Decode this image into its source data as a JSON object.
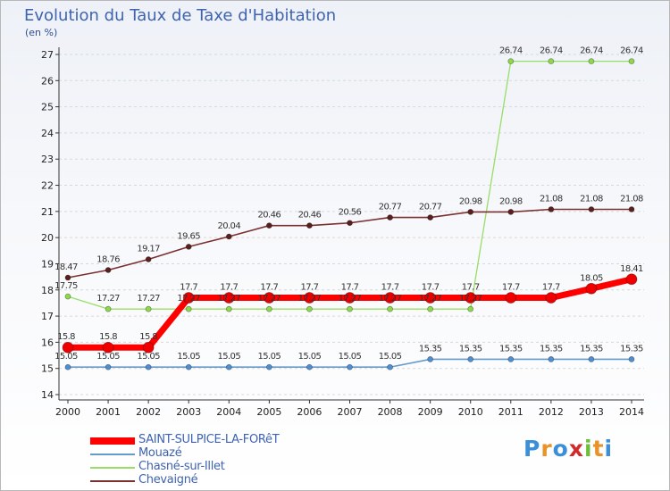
{
  "page": {
    "title": "Evolution du Taux de Taxe d'Habitation",
    "unit": "(en %)"
  },
  "chart_data": {
    "type": "line",
    "title": "Evolution du Taux de Taxe d'Habitation",
    "ylabel": "(en %)",
    "xlabel": "",
    "x": [
      2000,
      2001,
      2002,
      2003,
      2004,
      2005,
      2006,
      2007,
      2008,
      2009,
      2010,
      2011,
      2012,
      2013,
      2014
    ],
    "ylim": [
      14,
      27
    ],
    "yticks": [
      14,
      15,
      16,
      17,
      18,
      19,
      20,
      21,
      22,
      23,
      24,
      25,
      26,
      27
    ],
    "grid": "horizontal",
    "legend_position": "bottom-left",
    "series": [
      {
        "name": "SAINT-SULPICE-LA-FORêT",
        "color": "#ff0000",
        "values": [
          15.8,
          15.8,
          15.8,
          17.7,
          17.7,
          17.7,
          17.7,
          17.7,
          17.7,
          17.7,
          17.7,
          17.7,
          17.7,
          18.05,
          18.41
        ],
        "labels": [
          "15.8",
          "15.8",
          "15.8",
          "17.7",
          "17.7",
          "17.7",
          "17.7",
          "17.7",
          "17.7",
          "17.7",
          "17.7",
          "17.7",
          "17.7",
          "18.05",
          "18.41"
        ]
      },
      {
        "name": "Mouazé",
        "color": "#6699cc",
        "values": [
          15.05,
          15.05,
          15.05,
          15.05,
          15.05,
          15.05,
          15.05,
          15.05,
          15.05,
          15.35,
          15.35,
          15.35,
          15.35,
          15.35,
          15.35
        ],
        "labels": [
          "15.05",
          "15.05",
          "15.05",
          "15.05",
          "15.05",
          "15.05",
          "15.05",
          "15.05",
          "15.05",
          "15.35",
          "15.35",
          "15.35",
          "15.35",
          "15.35",
          "15.35"
        ]
      },
      {
        "name": "Chasné-sur-Illet",
        "color": "#99dd66",
        "values": [
          17.75,
          17.27,
          17.27,
          17.27,
          17.27,
          17.27,
          17.27,
          17.27,
          17.27,
          17.27,
          17.27,
          26.74,
          26.74,
          26.74,
          26.74
        ],
        "labels": [
          "17.75",
          "17.27",
          "17.27",
          "17.27",
          "17.27",
          "17.27",
          "17.27",
          "17.27",
          "17.27",
          "17.27",
          "17.27",
          "26.74",
          "26.74",
          "26.74",
          "26.74"
        ]
      },
      {
        "name": "Chevaigné",
        "color": "#7a3030",
        "values": [
          18.47,
          18.76,
          19.17,
          19.65,
          20.04,
          20.46,
          20.46,
          20.56,
          20.77,
          20.77,
          20.98,
          20.98,
          21.08,
          21.08,
          21.08
        ],
        "labels": [
          "18.47",
          "18.76",
          "19.17",
          "19.65",
          "20.04",
          "20.46",
          "20.46",
          "20.56",
          "20.77",
          "20.77",
          "20.98",
          "20.98",
          "21.08",
          "21.08",
          "21.08"
        ]
      }
    ]
  },
  "logo": {
    "letters": [
      "P",
      "r",
      "o",
      "x",
      "i",
      "t",
      "i"
    ],
    "colors": [
      "#3a8fd8",
      "#e8932a",
      "#3a8fd8",
      "#d02a2a",
      "#6cbf3a",
      "#e8932a",
      "#3a8fd8"
    ]
  }
}
